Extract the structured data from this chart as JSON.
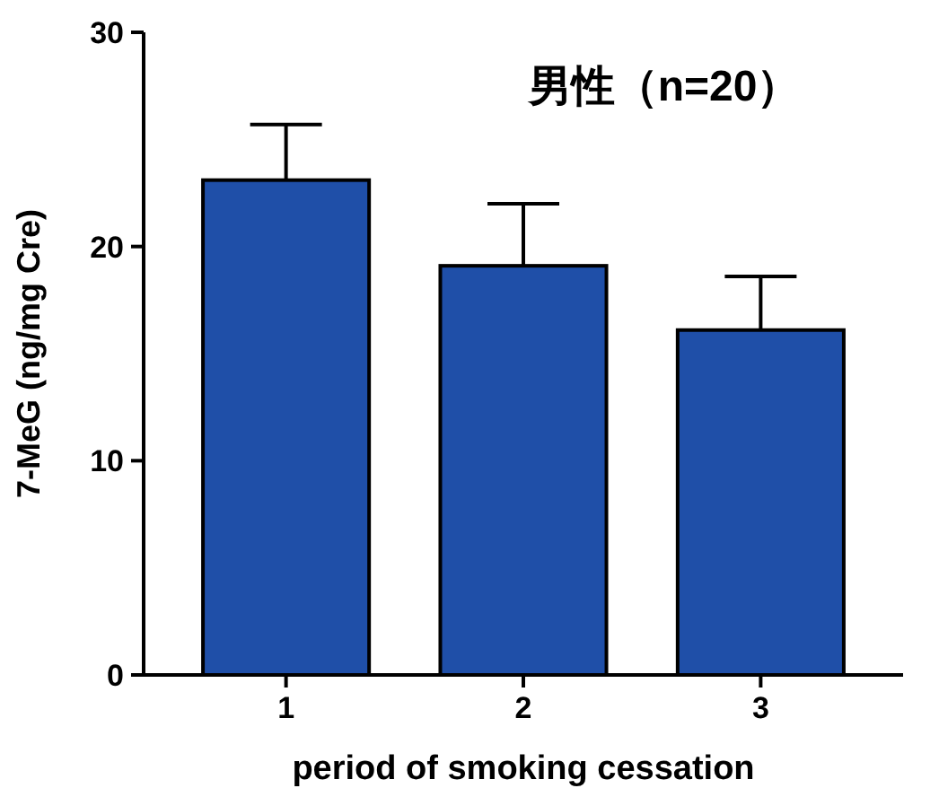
{
  "chart_data": {
    "type": "bar",
    "title": "男性（n=20）",
    "xlabel": "period of smoking cessation",
    "ylabel": "7-MeG (ng/mg Cre)",
    "categories": [
      "1",
      "2",
      "3"
    ],
    "values": [
      23.1,
      19.1,
      16.1
    ],
    "color": "#1f4fa8",
    "errors": [
      [
        23.1,
        25.7
      ],
      [
        19.1,
        22.0
      ],
      [
        16.1,
        18.6
      ]
    ],
    "ylim": [
      0,
      30
    ],
    "yticks": [
      0,
      10,
      20,
      30
    ],
    "grid": false
  }
}
